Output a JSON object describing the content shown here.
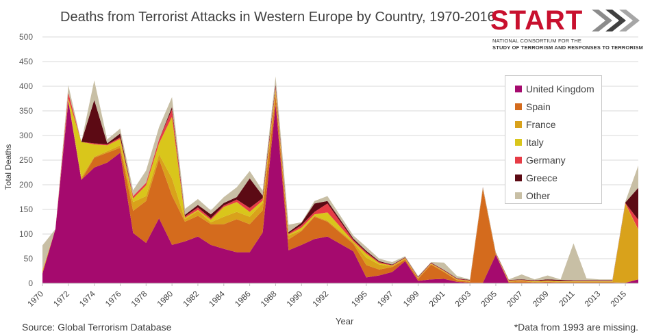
{
  "header": {
    "title": "Deaths from Terrorist Attacks in Western Europe by Country, 1970-2016"
  },
  "logo": {
    "word": "START",
    "line1": "NATIONAL CONSORTIUM FOR THE",
    "line2": "STUDY OF TERRORISM AND RESPONSES TO TERRORISM",
    "colors": {
      "word": "#c8102e",
      "arrows": [
        "#8c8c8c",
        "#404040",
        "#a6a6a6"
      ]
    }
  },
  "footer": {
    "source": "Source: Global Terrorism Database",
    "note": "*Data from 1993 are missing."
  },
  "chart_data": {
    "type": "area",
    "stacked": true,
    "title": "Deaths from Terrorist Attacks in Western Europe by Country, 1970-2016",
    "xlabel": "Year",
    "ylabel": "Total Deaths",
    "ylim": [
      0,
      500
    ],
    "yticks": [
      0,
      50,
      100,
      150,
      200,
      250,
      300,
      350,
      400,
      450,
      500
    ],
    "xlim": [
      1970,
      2016
    ],
    "xticks": [
      1970,
      1972,
      1974,
      1976,
      1978,
      1980,
      1982,
      1984,
      1986,
      1988,
      1990,
      1992,
      1995,
      1997,
      1999,
      2001,
      2003,
      2005,
      2007,
      2009,
      2011,
      2013,
      2015
    ],
    "grid": "horizontal",
    "legend_position": "right",
    "x": [
      1970,
      1971,
      1972,
      1973,
      1974,
      1975,
      1976,
      1977,
      1978,
      1979,
      1980,
      1981,
      1982,
      1983,
      1984,
      1985,
      1986,
      1987,
      1988,
      1989,
      1990,
      1991,
      1992,
      1994,
      1995,
      1996,
      1997,
      1998,
      1999,
      2000,
      2001,
      2002,
      2003,
      2004,
      2005,
      2006,
      2007,
      2008,
      2009,
      2010,
      2011,
      2012,
      2013,
      2014,
      2015,
      2016
    ],
    "series": [
      {
        "name": "United Kingdom",
        "color": "#a50a6e",
        "values": [
          20,
          110,
          370,
          210,
          235,
          245,
          265,
          102,
          82,
          132,
          78,
          85,
          95,
          78,
          70,
          63,
          63,
          103,
          363,
          67,
          78,
          90,
          95,
          65,
          12,
          16,
          23,
          45,
          5,
          8,
          9,
          3,
          1,
          1,
          58,
          1,
          1,
          1,
          1,
          1,
          1,
          1,
          1,
          1,
          1,
          8
        ]
      },
      {
        "name": "Spain",
        "color": "#d46b1d",
        "values": [
          0,
          0,
          0,
          0,
          20,
          20,
          10,
          45,
          85,
          120,
          100,
          40,
          42,
          42,
          50,
          67,
          57,
          45,
          18,
          22,
          28,
          45,
          30,
          15,
          25,
          12,
          10,
          3,
          4,
          30,
          14,
          3,
          2,
          190,
          0,
          2,
          3,
          1,
          2,
          1,
          1,
          1,
          1,
          1,
          0,
          0
        ]
      },
      {
        "name": "France",
        "color": "#d9a21b",
        "values": [
          5,
          0,
          2,
          5,
          2,
          3,
          5,
          18,
          10,
          10,
          35,
          5,
          10,
          4,
          15,
          15,
          15,
          15,
          8,
          8,
          2,
          2,
          2,
          3,
          15,
          10,
          2,
          2,
          1,
          1,
          1,
          1,
          1,
          1,
          1,
          1,
          1,
          1,
          1,
          1,
          1,
          1,
          1,
          1,
          160,
          100
        ]
      },
      {
        "name": "Italy",
        "color": "#d9c61b",
        "values": [
          1,
          0,
          3,
          72,
          25,
          12,
          13,
          7,
          22,
          22,
          125,
          3,
          2,
          5,
          20,
          20,
          10,
          5,
          5,
          2,
          5,
          3,
          17,
          2,
          8,
          3,
          1,
          1,
          1,
          1,
          1,
          1,
          1,
          1,
          1,
          1,
          1,
          1,
          1,
          1,
          1,
          1,
          1,
          1,
          1,
          1
        ]
      },
      {
        "name": "Germany",
        "color": "#e63c46",
        "values": [
          1,
          0,
          12,
          0,
          2,
          2,
          3,
          5,
          5,
          8,
          15,
          3,
          5,
          3,
          3,
          5,
          8,
          5,
          5,
          2,
          5,
          5,
          18,
          3,
          3,
          2,
          1,
          1,
          1,
          1,
          1,
          1,
          1,
          1,
          1,
          1,
          1,
          1,
          1,
          1,
          1,
          1,
          1,
          1,
          1,
          20
        ]
      },
      {
        "name": "Greece",
        "color": "#5c0a14",
        "values": [
          0,
          0,
          0,
          0,
          88,
          2,
          8,
          0,
          0,
          0,
          5,
          3,
          5,
          8,
          5,
          5,
          60,
          5,
          5,
          3,
          5,
          17,
          5,
          3,
          3,
          2,
          1,
          1,
          1,
          1,
          1,
          1,
          1,
          1,
          1,
          1,
          1,
          1,
          2,
          2,
          1,
          1,
          1,
          1,
          1,
          65
        ]
      },
      {
        "name": "Other",
        "color": "#c8bfa5",
        "values": [
          50,
          0,
          15,
          0,
          40,
          8,
          10,
          12,
          25,
          25,
          20,
          12,
          12,
          8,
          12,
          20,
          15,
          10,
          16,
          15,
          1,
          5,
          10,
          6,
          8,
          5,
          5,
          2,
          2,
          1,
          15,
          5,
          1,
          1,
          1,
          1,
          10,
          2,
          8,
          1,
          75,
          4,
          2,
          2,
          2,
          45
        ]
      }
    ]
  }
}
